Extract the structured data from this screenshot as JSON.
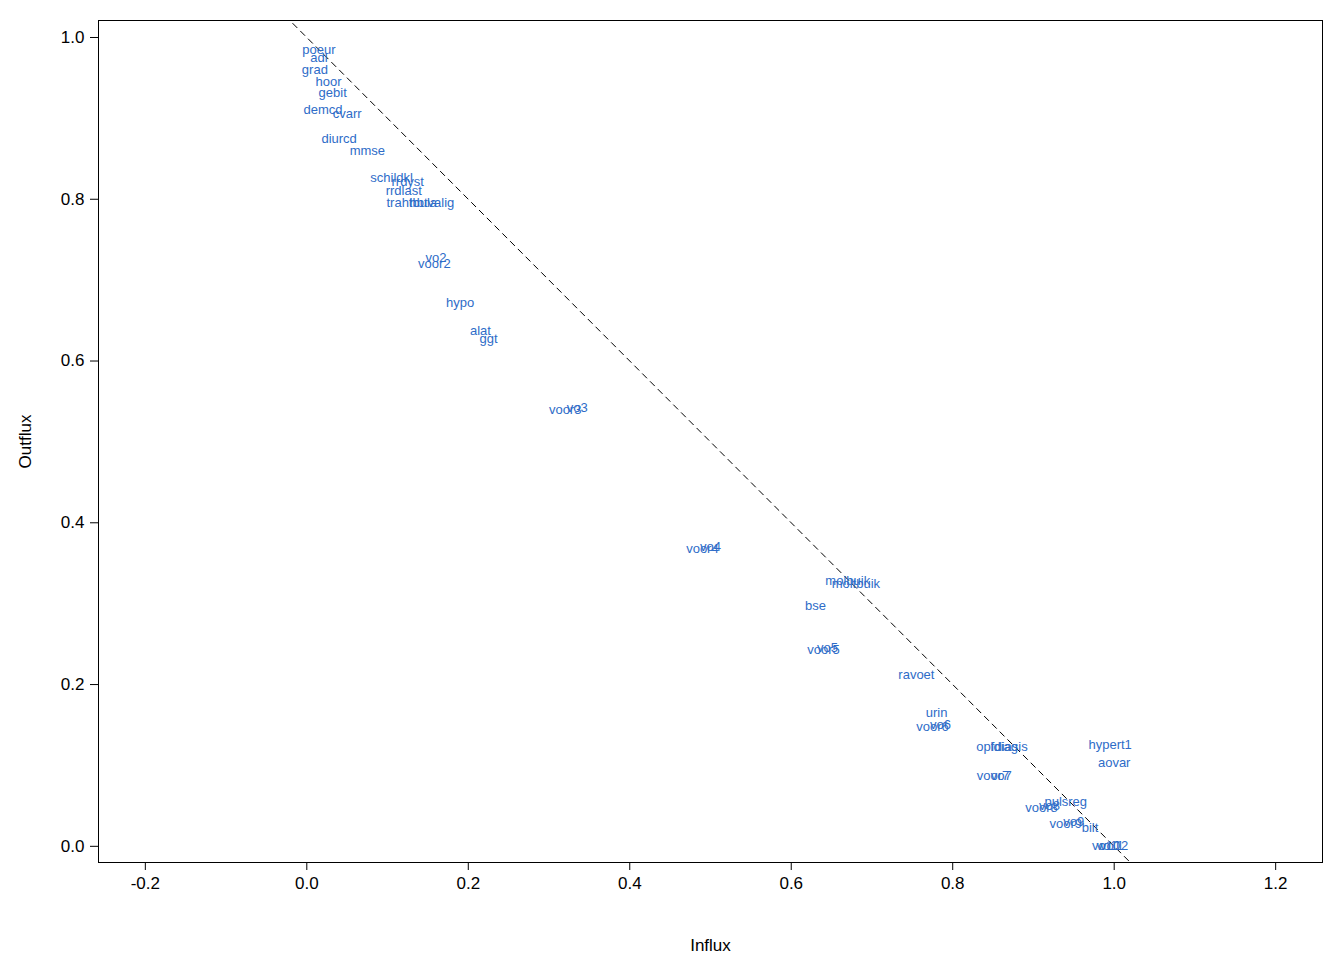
{
  "chart_data": {
    "type": "scatter",
    "marker": "text",
    "color": "#2e6cc8",
    "x_label": "Influx",
    "y_label": "Outflux",
    "xlim": [
      -0.258,
      1.258
    ],
    "ylim": [
      -0.02,
      1.021
    ],
    "xticks": [
      -0.2,
      {
        "value": 0,
        "label": "0.0"
      },
      0.2,
      0.4,
      0.6,
      0.8,
      {
        "value": 1,
        "label": "1.0"
      },
      1.2
    ],
    "yticks": [
      {
        "value": 0,
        "label": "0.0"
      },
      0.2,
      0.4,
      0.6,
      0.8,
      {
        "value": 1,
        "label": "1.0"
      }
    ],
    "reference_line": {
      "intercept": 1,
      "slope": -1
    },
    "point_labels": [
      "poeur",
      "adl",
      "grad",
      "hoor",
      "gebit",
      "demcd",
      "cvarr",
      "diurcd",
      "mmse",
      "schildkl",
      "rrdyst",
      "rrdlast",
      "trahtbula",
      "hbtvalig",
      "vo2",
      "voor2",
      "hypo",
      "alat",
      "ggt",
      "vo3",
      "voor3",
      "vo4",
      "voor4",
      "molbuik",
      "moltbuik",
      "bse",
      "vo5",
      "voor5",
      "ravoet",
      "urin",
      "vo6",
      "voor6",
      "opldiag",
      "fdiasis",
      "hypert1",
      "aovar",
      "vo7",
      "voor7",
      "pulsreg",
      "vo8",
      "voor8",
      "vo9",
      "voor9",
      "bilt",
      "vo10",
      "vo11",
      "vo12"
    ],
    "x": [
      0.015,
      0.015,
      0.01,
      0.027,
      0.032,
      0.02,
      0.05,
      0.04,
      0.075,
      0.105,
      0.125,
      0.12,
      0.13,
      0.155,
      0.16,
      0.158,
      0.19,
      0.215,
      0.225,
      0.335,
      0.32,
      0.5,
      0.49,
      0.67,
      0.68,
      0.63,
      0.645,
      0.64,
      0.755,
      0.78,
      0.785,
      0.775,
      0.855,
      0.87,
      0.995,
      1.0,
      0.86,
      0.85,
      0.94,
      0.92,
      0.91,
      0.95,
      0.94,
      0.97,
      0.99,
      0.995,
      1.0
    ],
    "y": [
      0.985,
      0.975,
      0.96,
      0.945,
      0.932,
      0.91,
      0.905,
      0.875,
      0.86,
      0.826,
      0.822,
      0.81,
      0.795,
      0.795,
      0.727,
      0.72,
      0.672,
      0.637,
      0.627,
      0.542,
      0.54,
      0.37,
      0.368,
      0.328,
      0.325,
      0.297,
      0.245,
      0.243,
      0.212,
      0.165,
      0.15,
      0.148,
      0.123,
      0.123,
      0.125,
      0.103,
      0.087,
      0.087,
      0.055,
      0.05,
      0.047,
      0.03,
      0.028,
      0.023,
      0.0,
      0.0,
      0.0
    ]
  }
}
